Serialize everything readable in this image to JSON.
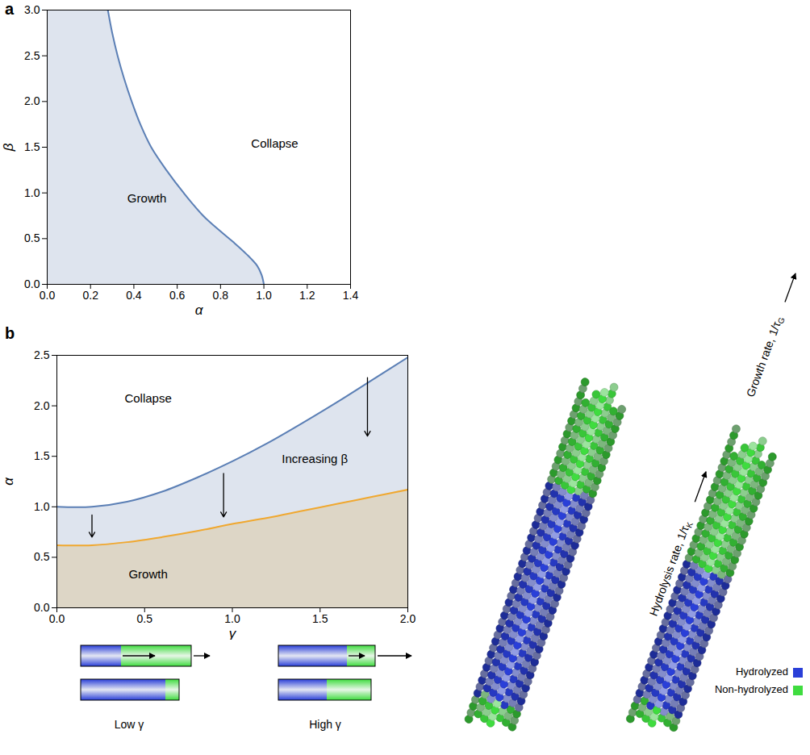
{
  "chart_data": [
    {
      "panel": "a",
      "type": "line",
      "x_label": "α",
      "y_label": "β",
      "xlim": [
        0,
        1.4
      ],
      "xticks": [
        {
          "value": 0,
          "label": "0.0"
        },
        {
          "value": 0.2,
          "label": "0.2"
        },
        {
          "value": 0.4,
          "label": "0.4"
        },
        {
          "value": 0.6,
          "label": "0.6"
        },
        {
          "value": 0.8,
          "label": "0.8"
        },
        {
          "value": 1.0,
          "label": "1.0"
        },
        {
          "value": 1.2,
          "label": "1.2"
        },
        {
          "value": 1.4,
          "label": "1.4"
        }
      ],
      "ylim": [
        0,
        3
      ],
      "yticks": [
        {
          "value": 0,
          "label": "0.0"
        },
        {
          "value": 0.5,
          "label": "0.5"
        },
        {
          "value": 1.0,
          "label": "1.0"
        },
        {
          "value": 1.5,
          "label": "1.5"
        },
        {
          "value": 2.0,
          "label": "2.0"
        },
        {
          "value": 2.5,
          "label": "2.5"
        },
        {
          "value": 3.0,
          "label": "3.0"
        }
      ],
      "series": [
        {
          "color": "#5b7fb5",
          "x": [
            0.28,
            0.3,
            0.325,
            0.355,
            0.39,
            0.43,
            0.48,
            0.55,
            0.63,
            0.72,
            0.8,
            0.86,
            0.92,
            0.97,
            0.99,
            1.0
          ],
          "values": [
            3.0,
            2.75,
            2.5,
            2.25,
            2.0,
            1.75,
            1.5,
            1.25,
            1.0,
            0.75,
            0.58,
            0.46,
            0.33,
            0.2,
            0.1,
            0.0
          ]
        }
      ],
      "annotations": [
        {
          "text": "Growth",
          "x": 0.46,
          "y": 0.94
        },
        {
          "text": "Collapse",
          "x": 1.05,
          "y": 1.54
        }
      ]
    },
    {
      "panel": "b",
      "type": "line",
      "x_label": "γ",
      "y_label": "α",
      "xlim": [
        0,
        2
      ],
      "xticks": [
        {
          "value": 0,
          "label": "0.0"
        },
        {
          "value": 0.5,
          "label": "0.5"
        },
        {
          "value": 1.0,
          "label": "1.0"
        },
        {
          "value": 1.5,
          "label": "1.5"
        },
        {
          "value": 2.0,
          "label": "2.0"
        }
      ],
      "ylim": [
        0,
        2.5
      ],
      "yticks": [
        {
          "value": 0,
          "label": "0.0"
        },
        {
          "value": 0.5,
          "label": "0.5"
        },
        {
          "value": 1.0,
          "label": "1.0"
        },
        {
          "value": 1.5,
          "label": "1.5"
        },
        {
          "value": 2.0,
          "label": "2.0"
        },
        {
          "value": 2.5,
          "label": "2.5"
        }
      ],
      "series": [
        {
          "color": "#5b7fb5",
          "x": [
            0,
            0.2,
            0.4,
            0.6,
            0.8,
            1.0,
            1.2,
            1.4,
            1.6,
            1.8,
            2.0
          ],
          "values": [
            1.0,
            1.0,
            1.05,
            1.15,
            1.29,
            1.45,
            1.63,
            1.83,
            2.04,
            2.26,
            2.48
          ]
        },
        {
          "color": "#f0a830",
          "x": [
            0,
            0.2,
            0.4,
            0.6,
            0.8,
            1.0,
            1.2,
            1.4,
            1.6,
            1.8,
            2.0
          ],
          "values": [
            0.62,
            0.62,
            0.65,
            0.7,
            0.76,
            0.83,
            0.89,
            0.96,
            1.03,
            1.1,
            1.17
          ]
        }
      ],
      "annotations": [
        {
          "text": "Collapse",
          "x": 0.52,
          "y": 2.07
        },
        {
          "text": "Increasing β",
          "x": 1.47,
          "y": 1.47
        },
        {
          "text": "Growth",
          "x": 0.52,
          "y": 0.33
        }
      ],
      "arrows": [
        {
          "x": 0.2,
          "y1": 0.92,
          "y2": 0.7
        },
        {
          "x": 0.95,
          "y1": 1.33,
          "y2": 0.9
        },
        {
          "x": 1.77,
          "y1": 2.28,
          "y2": 1.7
        }
      ]
    }
  ],
  "schematic": {
    "labels": [
      "Low γ",
      "High γ"
    ]
  },
  "illustration": {
    "growth_label": "Growth rate, 1/τG",
    "hydrolysis_label": "Hydrolysis rate, 1/τK",
    "legend": [
      {
        "name": "Hydrolyzed",
        "color": "#2a3fd8"
      },
      {
        "name": "Non-hydrolyzed",
        "color": "#3fdc3f"
      }
    ]
  }
}
